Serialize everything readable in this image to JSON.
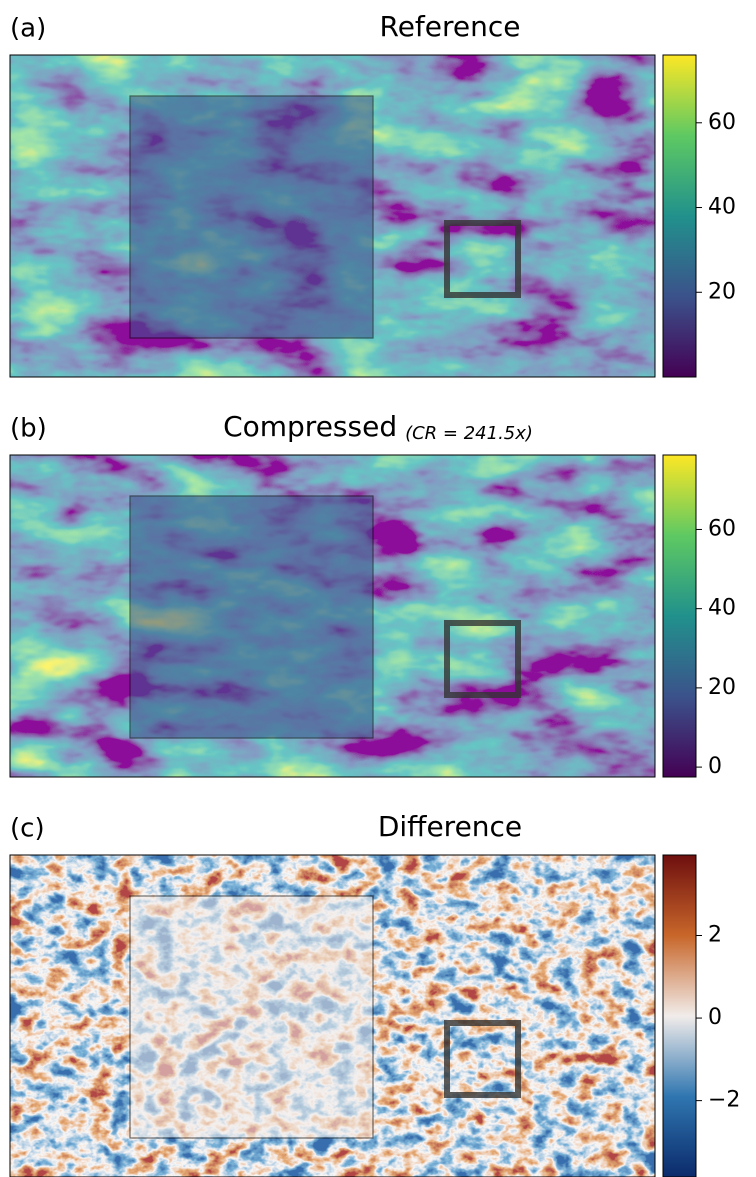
{
  "chart_data": [
    {
      "type": "heatmap",
      "panel_label": "(a)",
      "title": "Reference",
      "colormap": "viridis",
      "colorbar": {
        "lim": [
          0,
          76
        ],
        "ticks": [
          20,
          40,
          60
        ]
      }
    },
    {
      "type": "heatmap",
      "panel_label": "(b)",
      "title": "Compressed",
      "annotation": "(CR = 241.5x)",
      "colormap": "viridis",
      "colorbar": {
        "lim": [
          -2.5,
          78.8
        ],
        "ticks": [
          0,
          20,
          40,
          60
        ]
      }
    },
    {
      "type": "heatmap",
      "panel_label": "(c)",
      "title": "Difference",
      "colormap": "balance",
      "colorbar": {
        "lim": [
          -3.85,
          3.95
        ],
        "ticks": [
          {
            "value": -2,
            "label": "−2"
          },
          0,
          2
        ]
      }
    }
  ]
}
